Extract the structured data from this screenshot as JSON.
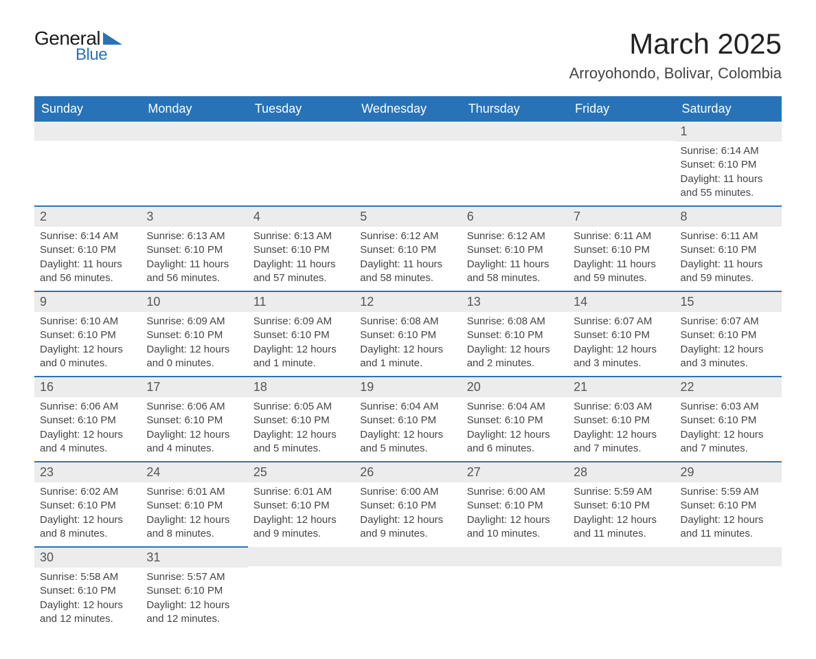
{
  "logo": {
    "text1": "General",
    "text2": "Blue",
    "accent": "#2873b8"
  },
  "title": "March 2025",
  "location": "Arroyohondo, Bolivar, Colombia",
  "colors": {
    "header_bg": "#2873b8",
    "header_text": "#ffffff",
    "daynum_bg": "#ececec",
    "row_divider": "#2873b8",
    "body_text": "#444444"
  },
  "day_headers": [
    "Sunday",
    "Monday",
    "Tuesday",
    "Wednesday",
    "Thursday",
    "Friday",
    "Saturday"
  ],
  "weeks": [
    [
      null,
      null,
      null,
      null,
      null,
      null,
      {
        "n": "1",
        "sr": "Sunrise: 6:14 AM",
        "ss": "Sunset: 6:10 PM",
        "dl1": "Daylight: 11 hours",
        "dl2": "and 55 minutes."
      }
    ],
    [
      {
        "n": "2",
        "sr": "Sunrise: 6:14 AM",
        "ss": "Sunset: 6:10 PM",
        "dl1": "Daylight: 11 hours",
        "dl2": "and 56 minutes."
      },
      {
        "n": "3",
        "sr": "Sunrise: 6:13 AM",
        "ss": "Sunset: 6:10 PM",
        "dl1": "Daylight: 11 hours",
        "dl2": "and 56 minutes."
      },
      {
        "n": "4",
        "sr": "Sunrise: 6:13 AM",
        "ss": "Sunset: 6:10 PM",
        "dl1": "Daylight: 11 hours",
        "dl2": "and 57 minutes."
      },
      {
        "n": "5",
        "sr": "Sunrise: 6:12 AM",
        "ss": "Sunset: 6:10 PM",
        "dl1": "Daylight: 11 hours",
        "dl2": "and 58 minutes."
      },
      {
        "n": "6",
        "sr": "Sunrise: 6:12 AM",
        "ss": "Sunset: 6:10 PM",
        "dl1": "Daylight: 11 hours",
        "dl2": "and 58 minutes."
      },
      {
        "n": "7",
        "sr": "Sunrise: 6:11 AM",
        "ss": "Sunset: 6:10 PM",
        "dl1": "Daylight: 11 hours",
        "dl2": "and 59 minutes."
      },
      {
        "n": "8",
        "sr": "Sunrise: 6:11 AM",
        "ss": "Sunset: 6:10 PM",
        "dl1": "Daylight: 11 hours",
        "dl2": "and 59 minutes."
      }
    ],
    [
      {
        "n": "9",
        "sr": "Sunrise: 6:10 AM",
        "ss": "Sunset: 6:10 PM",
        "dl1": "Daylight: 12 hours",
        "dl2": "and 0 minutes."
      },
      {
        "n": "10",
        "sr": "Sunrise: 6:09 AM",
        "ss": "Sunset: 6:10 PM",
        "dl1": "Daylight: 12 hours",
        "dl2": "and 0 minutes."
      },
      {
        "n": "11",
        "sr": "Sunrise: 6:09 AM",
        "ss": "Sunset: 6:10 PM",
        "dl1": "Daylight: 12 hours",
        "dl2": "and 1 minute."
      },
      {
        "n": "12",
        "sr": "Sunrise: 6:08 AM",
        "ss": "Sunset: 6:10 PM",
        "dl1": "Daylight: 12 hours",
        "dl2": "and 1 minute."
      },
      {
        "n": "13",
        "sr": "Sunrise: 6:08 AM",
        "ss": "Sunset: 6:10 PM",
        "dl1": "Daylight: 12 hours",
        "dl2": "and 2 minutes."
      },
      {
        "n": "14",
        "sr": "Sunrise: 6:07 AM",
        "ss": "Sunset: 6:10 PM",
        "dl1": "Daylight: 12 hours",
        "dl2": "and 3 minutes."
      },
      {
        "n": "15",
        "sr": "Sunrise: 6:07 AM",
        "ss": "Sunset: 6:10 PM",
        "dl1": "Daylight: 12 hours",
        "dl2": "and 3 minutes."
      }
    ],
    [
      {
        "n": "16",
        "sr": "Sunrise: 6:06 AM",
        "ss": "Sunset: 6:10 PM",
        "dl1": "Daylight: 12 hours",
        "dl2": "and 4 minutes."
      },
      {
        "n": "17",
        "sr": "Sunrise: 6:06 AM",
        "ss": "Sunset: 6:10 PM",
        "dl1": "Daylight: 12 hours",
        "dl2": "and 4 minutes."
      },
      {
        "n": "18",
        "sr": "Sunrise: 6:05 AM",
        "ss": "Sunset: 6:10 PM",
        "dl1": "Daylight: 12 hours",
        "dl2": "and 5 minutes."
      },
      {
        "n": "19",
        "sr": "Sunrise: 6:04 AM",
        "ss": "Sunset: 6:10 PM",
        "dl1": "Daylight: 12 hours",
        "dl2": "and 5 minutes."
      },
      {
        "n": "20",
        "sr": "Sunrise: 6:04 AM",
        "ss": "Sunset: 6:10 PM",
        "dl1": "Daylight: 12 hours",
        "dl2": "and 6 minutes."
      },
      {
        "n": "21",
        "sr": "Sunrise: 6:03 AM",
        "ss": "Sunset: 6:10 PM",
        "dl1": "Daylight: 12 hours",
        "dl2": "and 7 minutes."
      },
      {
        "n": "22",
        "sr": "Sunrise: 6:03 AM",
        "ss": "Sunset: 6:10 PM",
        "dl1": "Daylight: 12 hours",
        "dl2": "and 7 minutes."
      }
    ],
    [
      {
        "n": "23",
        "sr": "Sunrise: 6:02 AM",
        "ss": "Sunset: 6:10 PM",
        "dl1": "Daylight: 12 hours",
        "dl2": "and 8 minutes."
      },
      {
        "n": "24",
        "sr": "Sunrise: 6:01 AM",
        "ss": "Sunset: 6:10 PM",
        "dl1": "Daylight: 12 hours",
        "dl2": "and 8 minutes."
      },
      {
        "n": "25",
        "sr": "Sunrise: 6:01 AM",
        "ss": "Sunset: 6:10 PM",
        "dl1": "Daylight: 12 hours",
        "dl2": "and 9 minutes."
      },
      {
        "n": "26",
        "sr": "Sunrise: 6:00 AM",
        "ss": "Sunset: 6:10 PM",
        "dl1": "Daylight: 12 hours",
        "dl2": "and 9 minutes."
      },
      {
        "n": "27",
        "sr": "Sunrise: 6:00 AM",
        "ss": "Sunset: 6:10 PM",
        "dl1": "Daylight: 12 hours",
        "dl2": "and 10 minutes."
      },
      {
        "n": "28",
        "sr": "Sunrise: 5:59 AM",
        "ss": "Sunset: 6:10 PM",
        "dl1": "Daylight: 12 hours",
        "dl2": "and 11 minutes."
      },
      {
        "n": "29",
        "sr": "Sunrise: 5:59 AM",
        "ss": "Sunset: 6:10 PM",
        "dl1": "Daylight: 12 hours",
        "dl2": "and 11 minutes."
      }
    ],
    [
      {
        "n": "30",
        "sr": "Sunrise: 5:58 AM",
        "ss": "Sunset: 6:10 PM",
        "dl1": "Daylight: 12 hours",
        "dl2": "and 12 minutes."
      },
      {
        "n": "31",
        "sr": "Sunrise: 5:57 AM",
        "ss": "Sunset: 6:10 PM",
        "dl1": "Daylight: 12 hours",
        "dl2": "and 12 minutes."
      },
      null,
      null,
      null,
      null,
      null
    ]
  ]
}
